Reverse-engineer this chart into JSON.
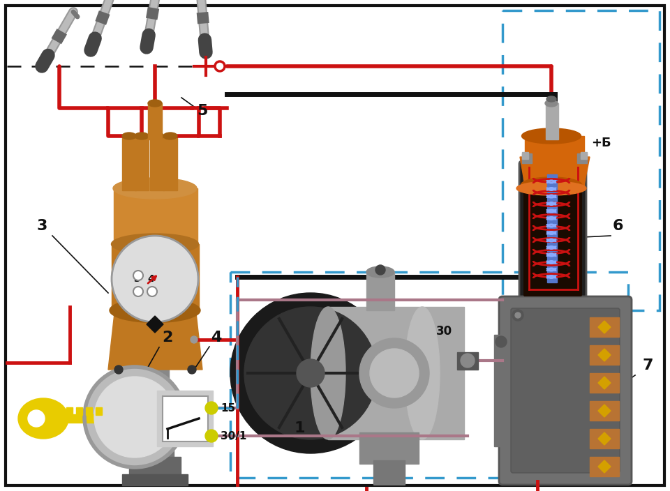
{
  "bg_color": "#ffffff",
  "fig_width": 9.6,
  "fig_height": 7.04,
  "dpi": 100,
  "red": "#cc1111",
  "black": "#111111",
  "blue_dash": "#3399cc",
  "brown_wire": "#8B6060",
  "orange": "#d4660a",
  "gray1": "#aaaaaa",
  "gray2": "#888888",
  "gray3": "#666666",
  "blue_core": "#5577cc",
  "gold": "#c8a800",
  "yellow_key": "#e8cc00",
  "dark": "#1a1a1a"
}
